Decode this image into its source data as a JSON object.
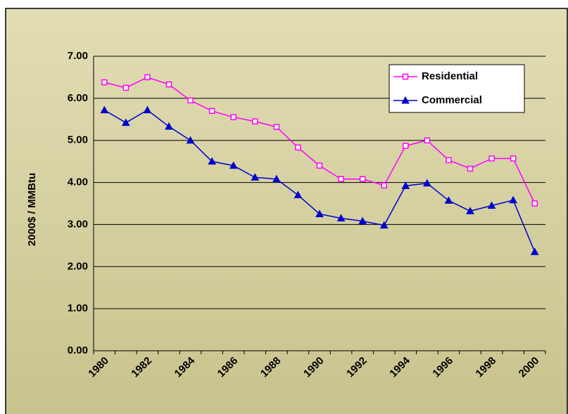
{
  "chart_data": {
    "type": "line",
    "y_label": "2000$ / MMBtu",
    "categories": [
      "1980",
      null,
      "1982",
      null,
      "1984",
      null,
      "1986",
      null,
      "1988",
      null,
      "1990",
      null,
      "1992",
      null,
      "1994",
      null,
      "1996",
      null,
      "1998",
      null,
      "2000"
    ],
    "series": [
      {
        "name": "Residential",
        "color": "#ff00ff",
        "marker": "square",
        "values": [
          6.38,
          6.25,
          6.5,
          6.33,
          5.95,
          5.7,
          5.55,
          5.45,
          5.32,
          4.83,
          4.4,
          4.08,
          4.08,
          3.93,
          4.87,
          5.0,
          4.53,
          4.33,
          4.57,
          4.57,
          3.5
        ]
      },
      {
        "name": "Commercial",
        "color": "#0000cc",
        "marker": "triangle",
        "values": [
          5.72,
          5.42,
          5.72,
          5.33,
          5.0,
          4.5,
          4.4,
          4.12,
          4.08,
          3.7,
          3.25,
          3.15,
          3.08,
          2.98,
          3.92,
          3.98,
          3.57,
          3.32,
          3.45,
          3.58,
          2.35
        ]
      }
    ],
    "ylim": [
      0,
      7
    ],
    "yticks": [
      {
        "value": 0,
        "label": "0.00"
      },
      {
        "value": 1,
        "label": "1.00"
      },
      {
        "value": 2,
        "label": "2.00"
      },
      {
        "value": 3,
        "label": "3.00"
      },
      {
        "value": 4,
        "label": "4.00"
      },
      {
        "value": 5,
        "label": "5.00"
      },
      {
        "value": 6,
        "label": "6.00"
      },
      {
        "value": 7,
        "label": "7.00"
      }
    ],
    "grid": true,
    "legend": "top-right"
  }
}
